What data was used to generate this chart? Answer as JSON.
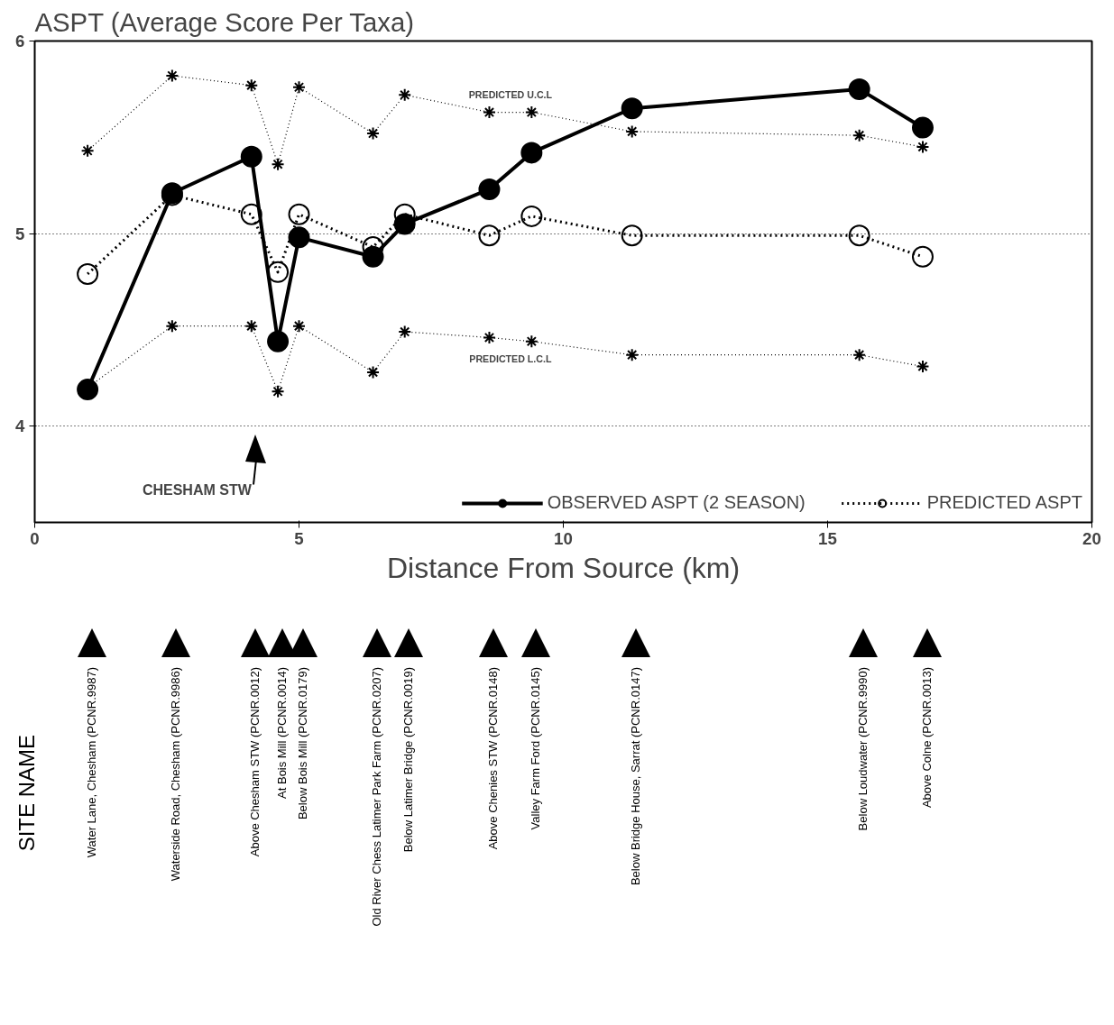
{
  "chart_data": {
    "type": "line",
    "title": "ASPT (Average Score Per Taxa)",
    "xlabel": "Distance From Source (km)",
    "x": [
      1.0,
      2.6,
      4.1,
      4.6,
      5.0,
      6.4,
      7.0,
      8.6,
      9.4,
      11.3,
      15.6,
      16.8
    ],
    "series": [
      {
        "name": "OBSERVED ASPT (2 SEASON)",
        "color": "#000000",
        "marker": "circle",
        "line_style": "solid",
        "values": [
          4.19,
          5.21,
          5.4,
          4.44,
          4.98,
          4.88,
          5.05,
          5.23,
          5.42,
          5.65,
          5.75,
          5.55
        ]
      },
      {
        "name": "PREDICTED ASPT",
        "color": "#000000",
        "marker": "circle",
        "line_style": "dotted",
        "values": [
          4.79,
          5.2,
          5.1,
          4.8,
          5.1,
          4.93,
          5.1,
          4.99,
          5.09,
          4.99,
          4.99,
          4.88
        ]
      },
      {
        "color": "#000000",
        "marker": "cross",
        "line_style": "dotted",
        "values": [
          5.43,
          5.82,
          5.77,
          5.36,
          5.76,
          5.52,
          5.72,
          5.63,
          5.63,
          5.53,
          5.51,
          5.45
        ]
      },
      {
        "color": "#000000",
        "marker": "cross",
        "line_style": "dotted",
        "values": [
          4.2,
          4.52,
          4.52,
          4.18,
          4.52,
          4.28,
          4.49,
          4.46,
          4.44,
          4.37,
          4.37,
          4.31
        ]
      }
    ],
    "xlim": [
      0,
      20
    ],
    "ylim": [
      3.5,
      6
    ],
    "xticks": [
      0,
      5,
      10,
      15,
      20
    ],
    "yticks": [
      4,
      5,
      6
    ],
    "grid": "y",
    "legend": "bottom right",
    "annotations": [
      "PREDICTED U.C.L",
      "PREDICTED L.C.L",
      "CHESHAM STW",
      "SITE NAME",
      "Water Lane, Chesham (PCNR.9987)",
      "Waterside Road, Chesham (PCNR.9986)",
      "Above Chesham STW (PCNR.0012)",
      "At Bois Mill (PCNR.0014)",
      "Below Bois Mill (PCNR.0179)",
      "Old River Chess Latimer Park Farm (PCNR.0207)",
      "Below Latimer Bridge (PCNR.0019)",
      "Above Chenies STW (PCNR.0148)",
      "Valley Farm Ford (PCNR.0145)",
      "Below Bridge House, Sarrat (PCNR.0147)",
      "Below Loudwater (PCNR.9990)",
      "Above Colne (PCNR.0013)"
    ]
  }
}
